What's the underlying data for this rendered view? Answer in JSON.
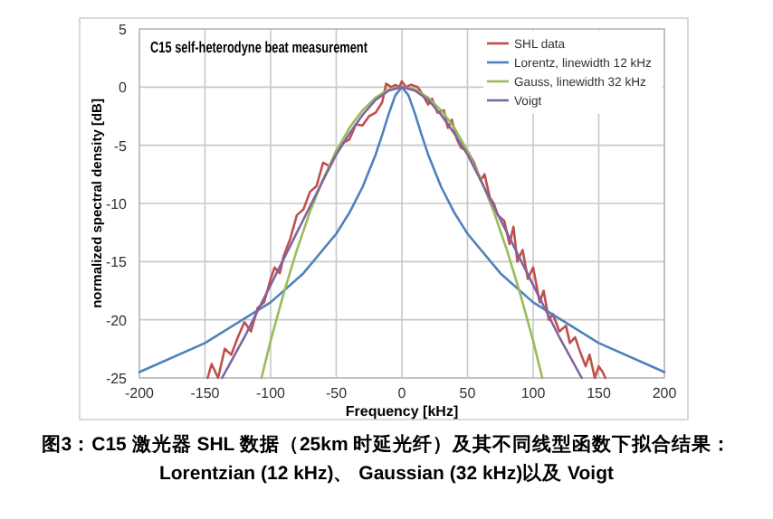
{
  "chart_data": {
    "type": "line",
    "title": "C15 self-heterodyne beat measurement",
    "xlabel": "Frequency [kHz]",
    "ylabel": "normalized spectral density [dB]",
    "annotations": [
      "图3：C15 激光器 SHL 数据（25km 时延光纤）及其不同线型函数下拟合结果：Lorentzian (12 kHz)、 Gaussian (32 kHz)以及 Voigt"
    ],
    "xlim": [
      -200,
      200
    ],
    "ylim": [
      -25,
      5
    ],
    "xticks": [
      -200,
      -150,
      -100,
      -50,
      0,
      50,
      100,
      150,
      200
    ],
    "yticks": [
      -25,
      -20,
      -15,
      -10,
      -5,
      0,
      5
    ],
    "grid": true,
    "legend": "top right",
    "series": [
      {
        "name": "SHL data",
        "color": "#c0504d",
        "x": [
          -148,
          -145,
          -140,
          -135,
          -130,
          -125,
          -120,
          -115,
          -110,
          -105,
          -100,
          -97,
          -93,
          -90,
          -85,
          -80,
          -75,
          -70,
          -65,
          -60,
          -55,
          -50,
          -45,
          -40,
          -35,
          -30,
          -25,
          -20,
          -15,
          -12,
          -8,
          -5,
          -2,
          0,
          3,
          7,
          12,
          15,
          20,
          23,
          27,
          32,
          35,
          38,
          42,
          45,
          50,
          55,
          60,
          63,
          67,
          70,
          73,
          78,
          82,
          85,
          88,
          92,
          96,
          100,
          105,
          108,
          112,
          115,
          120,
          125,
          128,
          132,
          135,
          140,
          143,
          147,
          150,
          153,
          155
        ],
        "values": [
          -25,
          -23.8,
          -25,
          -22.5,
          -23,
          -21.5,
          -20.2,
          -21,
          -19,
          -18.5,
          -16.5,
          -15.5,
          -16,
          -14.5,
          -13,
          -11,
          -10.5,
          -9,
          -8.5,
          -6.5,
          -6.8,
          -5.5,
          -4.8,
          -4.5,
          -3.2,
          -3.3,
          -2.5,
          -2.2,
          -1.3,
          0.3,
          0,
          0.2,
          0,
          0.5,
          0,
          0.2,
          0,
          -0.5,
          -1.5,
          -1,
          -2.2,
          -2,
          -3.5,
          -2.8,
          -4.5,
          -5.2,
          -5.5,
          -6.5,
          -8,
          -7.5,
          -9.5,
          -10,
          -11,
          -11.5,
          -13.5,
          -12,
          -15,
          -14,
          -16.5,
          -15.5,
          -18.5,
          -17.5,
          -20,
          -19.5,
          -21,
          -20.5,
          -22,
          -21.5,
          -22.5,
          -24,
          -23,
          -25,
          -24,
          -24.5,
          -25
        ]
      },
      {
        "name": "Lorentz, linewidth 12 kHz",
        "color": "#4f81bd",
        "x": [
          -200,
          -150,
          -100,
          -75,
          -50,
          -40,
          -30,
          -20,
          -15,
          -10,
          -5,
          0,
          5,
          10,
          15,
          20,
          30,
          40,
          50,
          75,
          100,
          150,
          200
        ],
        "values": [
          -24.5,
          -22,
          -18.5,
          -16,
          -12.6,
          -10.8,
          -8.6,
          -5.8,
          -4.1,
          -2.3,
          -0.7,
          0,
          -0.7,
          -2.3,
          -4.1,
          -5.8,
          -8.6,
          -10.8,
          -12.6,
          -16,
          -18.5,
          -22,
          -24.5
        ]
      },
      {
        "name": "Gauss, linewidth 32 kHz",
        "color": "#9bbb59",
        "x": [
          -107,
          -100,
          -90,
          -80,
          -70,
          -60,
          -50,
          -40,
          -30,
          -20,
          -10,
          0,
          10,
          20,
          30,
          40,
          50,
          60,
          70,
          80,
          90,
          100,
          107
        ],
        "values": [
          -25,
          -21.8,
          -17.7,
          -14,
          -10.7,
          -7.9,
          -5.5,
          -3.5,
          -2,
          -0.9,
          -0.2,
          0,
          -0.2,
          -0.9,
          -2,
          -3.5,
          -5.5,
          -7.9,
          -10.7,
          -14,
          -17.7,
          -21.8,
          -25
        ]
      },
      {
        "name": "Voigt",
        "color": "#8064a2",
        "x": [
          -137,
          -120,
          -100,
          -80,
          -60,
          -50,
          -40,
          -30,
          -20,
          -10,
          0,
          10,
          20,
          30,
          40,
          50,
          60,
          80,
          100,
          120,
          137
        ],
        "values": [
          -25,
          -21.5,
          -17,
          -12.5,
          -8,
          -5.8,
          -4,
          -2.4,
          -1.1,
          -0.3,
          0,
          -0.3,
          -1.1,
          -2.4,
          -4,
          -5.8,
          -8,
          -12.5,
          -17,
          -21.5,
          -25
        ]
      }
    ]
  }
}
